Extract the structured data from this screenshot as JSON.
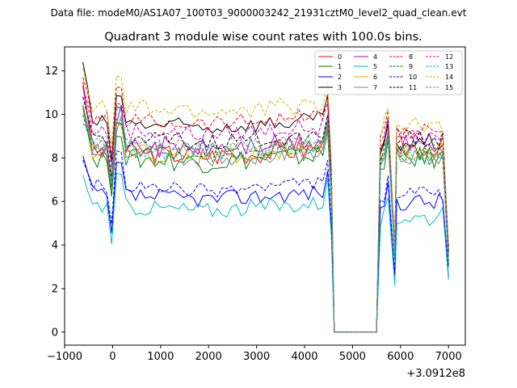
{
  "chart_data": {
    "type": "line",
    "suptitle": "Data file: modeM0/AS1A07_100T03_9000003242_21931cztM0_level2_quad_clean.evt",
    "title": "Quadrant 3 module wise count rates with 100.0s bins.",
    "xlabel": "",
    "ylabel": "",
    "x_offset_label": "+3.0912e8",
    "xlim": [
      -1000,
      7350
    ],
    "ylim": [
      -0.6,
      13.1
    ],
    "xticks": [
      -1000,
      0,
      1000,
      2000,
      3000,
      4000,
      5000,
      6000,
      7000
    ],
    "xtick_labels": [
      "−1000",
      "0",
      "1000",
      "2000",
      "3000",
      "4000",
      "5000",
      "6000",
      "7000"
    ],
    "yticks": [
      0,
      2,
      4,
      6,
      8,
      10,
      12
    ],
    "ytick_labels": [
      "0",
      "2",
      "4",
      "6",
      "8",
      "10",
      "12"
    ],
    "legend_position": "top-right",
    "legend_columns": 4,
    "series": [
      {
        "name": "0",
        "color": "#ff0000",
        "dash": "solid",
        "base": 8.3,
        "start": 11.5,
        "amp": 0.45,
        "post": 8.5
      },
      {
        "name": "1",
        "color": "#008000",
        "dash": "solid",
        "base": 8.0,
        "start": 10.3,
        "amp": 0.45,
        "post": 8.0
      },
      {
        "name": "2",
        "color": "#0000ff",
        "dash": "solid",
        "base": 6.3,
        "start": 8.1,
        "amp": 0.35,
        "post": 6.0
      },
      {
        "name": "3",
        "color": "#000000",
        "dash": "solid",
        "base": 9.6,
        "start": 12.4,
        "amp": 0.35,
        "post": 8.7
      },
      {
        "name": "4",
        "color": "#bf00bf",
        "dash": "solid",
        "base": 8.6,
        "start": 11.3,
        "amp": 0.45,
        "post": 8.6
      },
      {
        "name": "5",
        "color": "#00bfbf",
        "dash": "solid",
        "base": 5.8,
        "start": 7.2,
        "amp": 0.35,
        "post": 5.3
      },
      {
        "name": "6",
        "color": "#bfbf00",
        "dash": "solid",
        "base": 8.3,
        "start": 10.5,
        "amp": 0.4,
        "post": 8.3
      },
      {
        "name": "7",
        "color": "#808080",
        "dash": "solid",
        "base": 8.2,
        "start": 10.4,
        "amp": 0.4,
        "post": 8.1
      },
      {
        "name": "8",
        "color": "#ff0000",
        "dash": "dashed",
        "base": 9.8,
        "start": 11.7,
        "amp": 0.35,
        "post": 9.3
      },
      {
        "name": "9",
        "color": "#008000",
        "dash": "dashed",
        "base": 8.4,
        "start": 10.0,
        "amp": 0.35,
        "post": 8.2
      },
      {
        "name": "10",
        "color": "#0000ff",
        "dash": "dashed",
        "base": 6.7,
        "start": 7.9,
        "amp": 0.3,
        "post": 6.3
      },
      {
        "name": "11",
        "color": "#000000",
        "dash": "dashed",
        "base": 8.9,
        "start": 10.8,
        "amp": 0.35,
        "post": 8.9
      },
      {
        "name": "12",
        "color": "#bf00bf",
        "dash": "dashed",
        "base": 9.3,
        "start": 11.3,
        "amp": 0.35,
        "post": 9.0
      },
      {
        "name": "13",
        "color": "#00bfbf",
        "dash": "dashed",
        "base": 8.5,
        "start": 9.6,
        "amp": 0.4,
        "post": 8.0
      },
      {
        "name": "14",
        "color": "#bfbf00",
        "dash": "dashed",
        "base": 10.3,
        "start": 12.1,
        "amp": 0.4,
        "post": 9.4
      },
      {
        "name": "15",
        "color": "#808080",
        "dash": "dashed",
        "base": 8.6,
        "start": 10.0,
        "amp": 0.35,
        "post": 8.4
      }
    ],
    "x_sampling": {
      "start": -620,
      "step": 100,
      "gap_start": 4560,
      "gap_end": 5500,
      "end": 7000
    }
  }
}
